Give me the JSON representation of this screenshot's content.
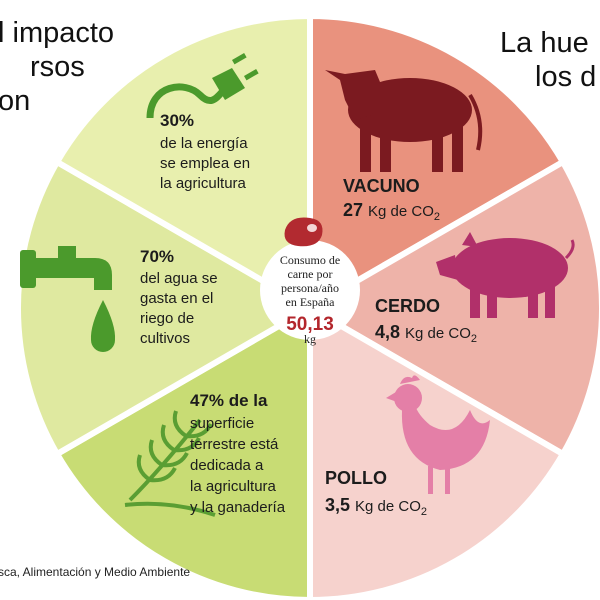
{
  "header_left": {
    "lines": [
      "l impacto",
      "rsos",
      "on"
    ]
  },
  "header_right": {
    "lines": [
      "La hue",
      "los d"
    ]
  },
  "resources": [
    {
      "percent": "30%",
      "lines": [
        "de la energía",
        "se emplea en",
        "la agricultura"
      ]
    },
    {
      "percent": "70%",
      "lines": [
        "del agua se",
        "gasta en el",
        "riego de",
        "cultivos"
      ]
    },
    {
      "lines": [
        "47% de la",
        "superficie",
        "terrestre está",
        "dedicada a",
        "la agricultura",
        "y la ganadería"
      ]
    }
  ],
  "meats": [
    {
      "name": "VACUNO",
      "amount": "27",
      "unit": "Kg de CO",
      "sub": "2"
    },
    {
      "name": "CERDO",
      "amount": "4,8",
      "unit": "Kg de CO",
      "sub": "2"
    },
    {
      "name": "POLLO",
      "amount": "3,5",
      "unit": "Kg de CO",
      "sub": "2"
    }
  ],
  "center": {
    "lines": [
      "Consumo de",
      "carne por",
      "persona/año",
      "en España"
    ],
    "value": "50,13",
    "unit": "kg"
  },
  "footer": "sca, Alimentación y Medio Ambiente"
}
